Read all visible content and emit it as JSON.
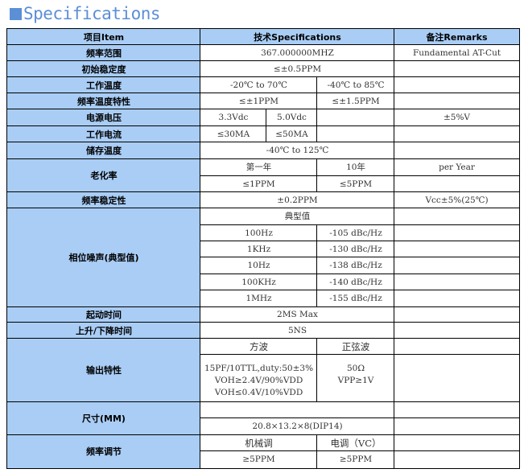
{
  "title": "Specifications",
  "colors": {
    "title": "#5b8fd6",
    "header_bg": "#a9cdf5",
    "border": "#000000"
  },
  "header": {
    "item": "项目Item",
    "spec": "技术Specifications",
    "remarks": "备注Remarks"
  },
  "rows": {
    "freq_range": {
      "label": "频率范围",
      "value": "367.000000MHZ",
      "remark": "Fundamental AT-Cut"
    },
    "init_stability": {
      "label": "初始稳定度",
      "value": "≤±0.5PPM",
      "remark": ""
    },
    "op_temp": {
      "label": "工作温度",
      "v1": "-20℃ to 70℃",
      "v2": "-40℃ to 85℃",
      "remark": ""
    },
    "freq_temp": {
      "label": "频率温度特性",
      "v1": "≤±1PPM",
      "v2": "≤±1.5PPM",
      "remark": ""
    },
    "supply_voltage": {
      "label": "电源电压",
      "v1": "3.3Vdc",
      "v2": "5.0Vdc",
      "remark": "±5%V"
    },
    "op_current": {
      "label": "工作电流",
      "v1": "≤30MA",
      "v2": "≤50MA",
      "remark": ""
    },
    "storage_temp": {
      "label": "储存温度",
      "value": "-40℃ to 125℃",
      "remark": ""
    },
    "aging": {
      "label": "老化率",
      "h1": "第一年",
      "h2": "10年",
      "remark": "per Year",
      "v1": "≤1PPM",
      "v2": "≤5PPM"
    },
    "freq_stability": {
      "label": "频率稳定性",
      "value": "±0.2PPM",
      "remark": "Vcc±5%(25℃)"
    },
    "phase_noise": {
      "label": "相位噪声(典型值)",
      "subheader": "典型值",
      "points": [
        {
          "offset": "100Hz",
          "value": "-105 dBc/Hz"
        },
        {
          "offset": "1KHz",
          "value": "-130 dBc/Hz"
        },
        {
          "offset": "10Hz",
          "value": "-138 dBc/Hz"
        },
        {
          "offset": "100KHz",
          "value": "-140 dBc/Hz"
        },
        {
          "offset": "1MHz",
          "value": "-155 dBc/Hz"
        }
      ]
    },
    "startup_time": {
      "label": "起动时间",
      "value": "2MS Max"
    },
    "rise_fall": {
      "label": "上升/下降时间",
      "value": "5NS"
    },
    "output": {
      "label": "输出特性",
      "h1": "方波",
      "h2": "正弦波",
      "square": [
        "15PF/10TTL,duty:50±3%",
        "VOH≥2.4V/90%VDD",
        "VOH≤0.4V/10%VDD"
      ],
      "sine": [
        "50Ω",
        "VPP≥1V"
      ]
    },
    "size": {
      "label": "尺寸(MM)",
      "value": "20.8×13.2×8(DIP14)"
    },
    "freq_adjust": {
      "label": "频率调节",
      "h1": "机械调",
      "h2": "电调（VC）",
      "v1": "≥5PPM",
      "v2": "≥5PPM"
    }
  }
}
